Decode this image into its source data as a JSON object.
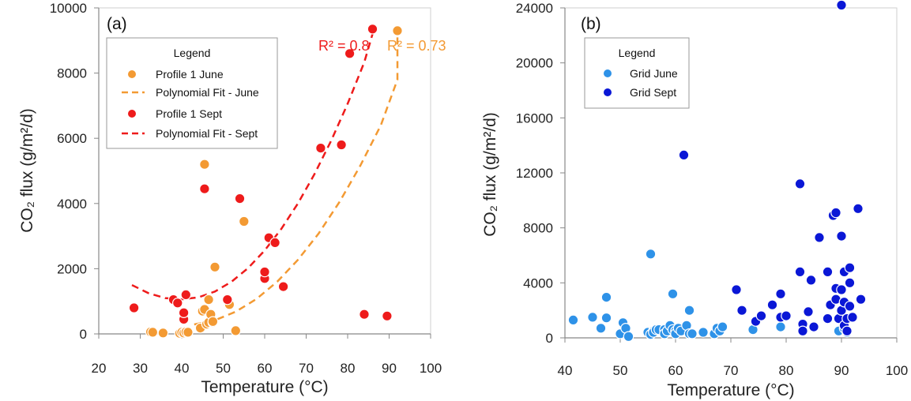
{
  "chart_data": [
    {
      "panel": "(a)",
      "type": "scatter",
      "xlabel": "Temperature (°C)",
      "ylabel": "CO₂ flux (g/m²/d)",
      "xlim": [
        20,
        100
      ],
      "ylim": [
        0,
        10000
      ],
      "xticks": [
        20,
        30,
        40,
        50,
        60,
        70,
        80,
        90,
        100
      ],
      "yticks": [
        0,
        2000,
        4000,
        6000,
        8000,
        10000
      ],
      "legend": {
        "title": "Legend",
        "placement": "top-left",
        "entries": [
          "Profile 1 June",
          "Polynomial Fit - June",
          "Profile 1 Sept",
          "Polynomial Fit - Sept"
        ]
      },
      "annotations": {
        "r2_sept": "R² = 0.8",
        "r2_june": "R² = 0.73"
      },
      "series": [
        {
          "name": "Profile 1 June",
          "kind": "points",
          "color": "#f39a33",
          "points": [
            [
              32.5,
              60
            ],
            [
              33,
              50
            ],
            [
              35.5,
              30
            ],
            [
              39.5,
              20
            ],
            [
              40,
              50
            ],
            [
              40.5,
              30
            ],
            [
              41,
              60
            ],
            [
              41.5,
              50
            ],
            [
              44.5,
              180
            ],
            [
              45,
              700
            ],
            [
              45.5,
              750
            ],
            [
              45.5,
              5200
            ],
            [
              46,
              300
            ],
            [
              46.5,
              350
            ],
            [
              46.5,
              1050
            ],
            [
              47,
              600
            ],
            [
              47.5,
              350
            ],
            [
              47.5,
              380
            ],
            [
              48,
              2050
            ],
            [
              51.5,
              900
            ],
            [
              53,
              100
            ],
            [
              55,
              3450
            ],
            [
              92,
              9300
            ]
          ]
        },
        {
          "name": "Polynomial Fit - June",
          "kind": "line",
          "color": "#f39a33",
          "points": [
            [
              43,
              290
            ],
            [
              48,
              420
            ],
            [
              53,
              680
            ],
            [
              58,
              1070
            ],
            [
              63,
              1600
            ],
            [
              68,
              2270
            ],
            [
              73,
              3080
            ],
            [
              78,
              4040
            ],
            [
              83,
              5150
            ],
            [
              88,
              6400
            ],
            [
              92,
              7800
            ],
            [
              92,
              9250
            ]
          ]
        },
        {
          "name": "Profile 1 Sept",
          "kind": "points",
          "color": "#ee1b1b",
          "points": [
            [
              28.5,
              800
            ],
            [
              38,
              1050
            ],
            [
              39,
              950
            ],
            [
              40.5,
              450
            ],
            [
              40.5,
              650
            ],
            [
              41,
              1200
            ],
            [
              45.5,
              4450
            ],
            [
              51,
              1050
            ],
            [
              54,
              4150
            ],
            [
              60,
              1700
            ],
            [
              60,
              1900
            ],
            [
              61,
              2950
            ],
            [
              62.5,
              2800
            ],
            [
              64.5,
              1450
            ],
            [
              73.5,
              5700
            ],
            [
              78.5,
              5800
            ],
            [
              80.5,
              8600
            ],
            [
              84,
              600
            ],
            [
              86,
              9350
            ],
            [
              89.5,
              550
            ]
          ]
        },
        {
          "name": "Polynomial Fit - Sept",
          "kind": "line",
          "color": "#ee1b1b",
          "points": [
            [
              28,
              1500
            ],
            [
              32,
              1250
            ],
            [
              36,
              1100
            ],
            [
              40,
              1060
            ],
            [
              44,
              1120
            ],
            [
              48,
              1300
            ],
            [
              52,
              1600
            ],
            [
              56,
              2020
            ],
            [
              60,
              2560
            ],
            [
              64,
              3220
            ],
            [
              68,
              4000
            ],
            [
              72,
              4900
            ],
            [
              76,
              5920
            ],
            [
              80,
              7060
            ],
            [
              84,
              8330
            ],
            [
              86,
              9200
            ]
          ]
        }
      ]
    },
    {
      "panel": "(b)",
      "type": "scatter",
      "xlabel": "Temperature (°C)",
      "ylabel": "CO₂ flux (g/m²/d)",
      "xlim": [
        40,
        100
      ],
      "ylim": [
        0,
        24000
      ],
      "xticks": [
        40,
        50,
        60,
        70,
        80,
        90,
        100
      ],
      "yticks": [
        0,
        4000,
        8000,
        12000,
        16000,
        20000,
        24000
      ],
      "legend": {
        "title": "Legend",
        "placement": "top-left",
        "entries": [
          "Grid June",
          "Grid Sept"
        ]
      },
      "series": [
        {
          "name": "Grid June",
          "kind": "points",
          "color": "#2e92e8",
          "points": [
            [
              41.5,
              1300
            ],
            [
              45,
              1500
            ],
            [
              46.5,
              700
            ],
            [
              47.5,
              2950
            ],
            [
              47.5,
              1450
            ],
            [
              50,
              300
            ],
            [
              50.5,
              1100
            ],
            [
              51,
              700
            ],
            [
              51.5,
              100
            ],
            [
              55,
              400
            ],
            [
              55.5,
              6100
            ],
            [
              55.5,
              250
            ],
            [
              56,
              500
            ],
            [
              56,
              400
            ],
            [
              56.5,
              600
            ],
            [
              57,
              600
            ],
            [
              58,
              600
            ],
            [
              58,
              300
            ],
            [
              58.5,
              500
            ],
            [
              59,
              900
            ],
            [
              59.5,
              3200
            ],
            [
              59.5,
              600
            ],
            [
              60,
              500
            ],
            [
              60,
              300
            ],
            [
              60.5,
              700
            ],
            [
              61,
              500
            ],
            [
              62,
              900
            ],
            [
              62.5,
              300
            ],
            [
              62.5,
              2000
            ],
            [
              63,
              300
            ],
            [
              65,
              400
            ],
            [
              67,
              300
            ],
            [
              67.5,
              700
            ],
            [
              68,
              500
            ],
            [
              68.5,
              800
            ],
            [
              74,
              600
            ],
            [
              79,
              800
            ],
            [
              89.5,
              500
            ],
            [
              90.5,
              700
            ],
            [
              91,
              400
            ]
          ]
        },
        {
          "name": "Grid Sept",
          "kind": "points",
          "color": "#0a17d6",
          "points": [
            [
              61.5,
              13300
            ],
            [
              71,
              3500
            ],
            [
              72,
              2000
            ],
            [
              74.5,
              1200
            ],
            [
              75.5,
              1600
            ],
            [
              77.5,
              2400
            ],
            [
              79,
              1500
            ],
            [
              79,
              3200
            ],
            [
              80,
              1600
            ],
            [
              82.5,
              11200
            ],
            [
              82.5,
              4800
            ],
            [
              83,
              1000
            ],
            [
              83,
              500
            ],
            [
              84,
              1900
            ],
            [
              84.5,
              4200
            ],
            [
              85,
              800
            ],
            [
              86,
              7300
            ],
            [
              87.5,
              1400
            ],
            [
              87.5,
              4800
            ],
            [
              88,
              2400
            ],
            [
              88.5,
              8900
            ],
            [
              89,
              9100
            ],
            [
              89,
              3600
            ],
            [
              89,
              2800
            ],
            [
              89.5,
              1400
            ],
            [
              90,
              24200
            ],
            [
              90,
              3500
            ],
            [
              90,
              7400
            ],
            [
              90,
              2000
            ],
            [
              90.5,
              4800
            ],
            [
              90.5,
              2600
            ],
            [
              90.5,
              900
            ],
            [
              91,
              1400
            ],
            [
              91,
              500
            ],
            [
              91.5,
              5100
            ],
            [
              91.5,
              2300
            ],
            [
              91.5,
              4000
            ],
            [
              92,
              1500
            ],
            [
              93,
              9400
            ],
            [
              93.5,
              2800
            ]
          ]
        }
      ]
    }
  ]
}
